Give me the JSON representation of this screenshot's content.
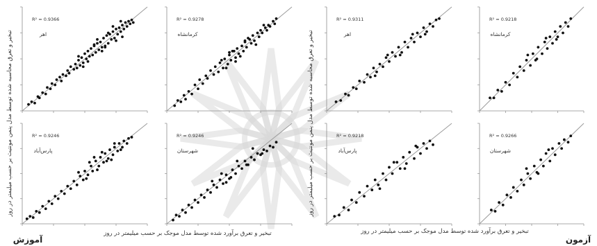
{
  "figure": {
    "watermark_color": "#d9d9d9",
    "axis_color": "#8c8c8c",
    "point_color": "#111111",
    "line_color": "#9a9a9a",
    "text_color": "#333333",
    "section_labels": {
      "left": "آموزش",
      "right": "آزمون"
    },
    "y_label": "تبخیر و تعرق محاسبه شده توسط مدل پنمن مونتیث بر حسب میلیمتر در روز",
    "x_label_left": "تبخیر و تعرق برآورد شده توسط مدل موجک بر حسب میلیمتر در روز",
    "x_label_right": "تبخیر و تعرق برآورد شده توسط مدل موجک بر حسب میلیمتر در روز"
  },
  "chart_data": [
    {
      "type": "scatter",
      "section": "آموزش",
      "station": "اهر",
      "r2": "R² = 0.9366",
      "xlim": [
        0,
        8
      ],
      "ylim": [
        0,
        8
      ],
      "line": [
        [
          0,
          0
        ],
        [
          8,
          8
        ]
      ],
      "x": [
        0.4,
        0.6,
        0.8,
        1.0,
        1.1,
        1.3,
        1.5,
        1.6,
        1.8,
        1.9,
        2.1,
        2.2,
        2.4,
        2.5,
        2.6,
        2.8,
        2.9,
        3.0,
        3.1,
        3.3,
        3.4,
        3.5,
        3.6,
        3.7,
        3.8,
        3.9,
        4.0,
        4.1,
        4.2,
        4.3,
        4.4,
        4.5,
        4.6,
        4.7,
        4.8,
        4.9,
        5.0,
        5.1,
        5.2,
        5.3,
        5.4,
        5.5,
        5.6,
        5.7,
        5.8,
        5.9,
        6.0,
        6.1,
        6.2,
        6.3,
        6.4,
        6.5,
        6.6,
        6.7,
        6.8,
        6.9,
        7.0,
        7.1,
        4.2,
        4.6,
        5.1,
        5.5,
        6.0,
        6.3,
        3.6,
        3.9,
        4.8,
        5.3,
        5.8,
        6.4
      ],
      "y": [
        0.5,
        0.7,
        0.6,
        1.1,
        1.0,
        1.4,
        1.3,
        1.8,
        1.7,
        2.1,
        2.0,
        2.4,
        2.6,
        2.3,
        2.8,
        2.7,
        3.1,
        2.9,
        3.4,
        3.2,
        3.6,
        3.3,
        3.9,
        3.5,
        4.1,
        3.7,
        4.4,
        4.0,
        4.6,
        4.2,
        4.8,
        4.3,
        5.0,
        4.5,
        5.2,
        4.7,
        5.3,
        4.9,
        5.6,
        5.0,
        5.8,
        5.2,
        5.9,
        5.5,
        6.1,
        5.6,
        6.3,
        5.9,
        6.4,
        6.1,
        6.6,
        6.3,
        6.8,
        6.5,
        6.9,
        6.7,
        7.0,
        6.8,
        3.8,
        5.1,
        4.6,
        6.0,
        5.4,
        6.9,
        4.2,
        3.4,
        5.5,
        4.9,
        6.5,
        5.7
      ]
    },
    {
      "type": "scatter",
      "section": "آموزش",
      "station": "کرمانشاه",
      "r2": "R² = 0.9278",
      "xlim": [
        0,
        8
      ],
      "ylim": [
        0,
        8
      ],
      "line": [
        [
          0,
          0
        ],
        [
          8,
          8
        ]
      ],
      "x": [
        0.5,
        0.7,
        0.9,
        1.1,
        1.2,
        1.4,
        1.6,
        1.8,
        2.0,
        2.1,
        2.3,
        2.5,
        2.6,
        2.8,
        3.0,
        3.1,
        3.3,
        3.4,
        3.6,
        3.7,
        3.9,
        4.0,
        4.1,
        4.3,
        4.4,
        4.5,
        4.6,
        4.8,
        4.9,
        5.0,
        5.1,
        5.3,
        5.4,
        5.5,
        5.6,
        5.8,
        5.9,
        6.0,
        6.1,
        6.3,
        6.4,
        6.5,
        6.6,
        6.8,
        6.9,
        7.0,
        3.5,
        3.8,
        4.2,
        4.7,
        5.2,
        5.7,
        6.2,
        4.0,
        4.4,
        5.0
      ],
      "y": [
        0.4,
        0.8,
        0.7,
        1.2,
        0.9,
        1.5,
        1.3,
        2.0,
        1.7,
        2.4,
        2.1,
        2.7,
        2.5,
        3.1,
        2.8,
        3.4,
        3.0,
        3.7,
        3.3,
        4.0,
        3.6,
        4.3,
        3.9,
        4.6,
        4.1,
        4.8,
        4.4,
        5.0,
        4.6,
        5.3,
        4.9,
        5.5,
        5.2,
        5.8,
        5.4,
        6.0,
        5.7,
        6.2,
        6.0,
        6.4,
        6.2,
        6.6,
        6.5,
        6.9,
        6.7,
        7.1,
        3.9,
        3.3,
        4.6,
        4.2,
        5.6,
        5.1,
        6.6,
        4.5,
        3.8,
        5.4
      ]
    },
    {
      "type": "scatter",
      "section": "آزمون",
      "station": "اهر",
      "r2": "R² = 0.9311",
      "xlim": [
        0,
        8
      ],
      "ylim": [
        0,
        8
      ],
      "line": [
        [
          0,
          0
        ],
        [
          8,
          8
        ]
      ],
      "x": [
        0.6,
        0.9,
        1.2,
        1.4,
        1.7,
        1.9,
        2.1,
        2.4,
        2.6,
        2.8,
        3.0,
        3.2,
        3.4,
        3.6,
        3.8,
        4.0,
        4.2,
        4.4,
        4.6,
        4.8,
        5.0,
        5.2,
        5.4,
        5.6,
        5.8,
        6.0,
        6.2,
        6.4,
        6.6,
        6.8,
        7.0,
        7.2,
        3.1,
        3.9,
        4.7,
        5.5,
        6.3
      ],
      "y": [
        0.7,
        0.8,
        1.3,
        1.2,
        1.8,
        1.7,
        2.3,
        2.2,
        2.8,
        2.6,
        3.3,
        3.0,
        3.6,
        3.4,
        4.1,
        3.8,
        4.5,
        4.2,
        4.9,
        4.5,
        5.3,
        4.9,
        5.6,
        5.3,
        6.0,
        5.7,
        6.4,
        6.1,
        6.7,
        6.5,
        7.0,
        7.1,
        2.7,
        4.3,
        4.3,
        5.9,
        5.9
      ]
    },
    {
      "type": "scatter",
      "section": "آزمون",
      "station": "کرمانشاه",
      "r2": "R² = 0.9218",
      "xlim": [
        0,
        8
      ],
      "ylim": [
        0,
        8
      ],
      "line": [
        [
          0,
          0
        ],
        [
          8,
          8
        ]
      ],
      "x": [
        0.8,
        1.1,
        1.4,
        1.7,
        2.0,
        2.3,
        2.6,
        2.9,
        3.1,
        3.4,
        3.6,
        3.9,
        4.1,
        4.3,
        4.5,
        4.8,
        5.0,
        5.2,
        5.4,
        5.6,
        5.8,
        6.0,
        6.2,
        6.4,
        6.6,
        6.8,
        7.0,
        3.7,
        4.4,
        5.1,
        5.9
      ],
      "y": [
        1.0,
        1.0,
        1.6,
        1.5,
        2.2,
        2.0,
        2.9,
        2.6,
        3.4,
        3.1,
        3.9,
        3.5,
        4.4,
        3.9,
        4.9,
        4.4,
        5.3,
        4.8,
        5.7,
        5.2,
        6.1,
        5.7,
        6.5,
        6.0,
        6.8,
        6.5,
        7.1,
        4.3,
        4.0,
        5.6,
        5.5
      ]
    },
    {
      "type": "scatter",
      "section": "آموزش",
      "station": "پارس‌آباد",
      "r2": "R² = 0.9246",
      "xlim": [
        0,
        8
      ],
      "ylim": [
        0,
        8
      ],
      "line": [
        [
          0,
          0
        ],
        [
          8,
          8
        ]
      ],
      "x": [
        0.3,
        0.5,
        0.7,
        0.9,
        1.1,
        1.3,
        1.5,
        1.7,
        1.9,
        2.1,
        2.3,
        2.5,
        2.7,
        2.9,
        3.1,
        3.3,
        3.5,
        3.7,
        3.9,
        4.0,
        4.2,
        4.4,
        4.5,
        4.7,
        4.9,
        5.0,
        5.2,
        5.3,
        5.5,
        5.6,
        5.8,
        5.9,
        6.1,
        6.2,
        6.4,
        6.5,
        6.7,
        6.8,
        7.0,
        4.3,
        4.8,
        5.1,
        5.4,
        5.9,
        6.3,
        3.6,
        4.1,
        4.6,
        5.7
      ],
      "y": [
        0.4,
        0.6,
        0.5,
        1.0,
        0.9,
        1.4,
        1.2,
        1.8,
        1.6,
        2.2,
        2.0,
        2.6,
        2.4,
        3.0,
        2.8,
        3.4,
        3.1,
        3.8,
        3.5,
        4.2,
        3.9,
        4.6,
        4.2,
        5.0,
        4.6,
        5.3,
        4.9,
        5.6,
        5.2,
        5.9,
        5.5,
        6.1,
        5.8,
        6.4,
        6.1,
        6.6,
        6.4,
        6.8,
        6.9,
        4.9,
        4.3,
        5.7,
        5.0,
        6.4,
        5.9,
        4.1,
        3.6,
        5.3,
        5.1
      ]
    },
    {
      "type": "scatter",
      "section": "آموزش",
      "station": "شهرستان",
      "r2": "R² = 0.9246",
      "xlim": [
        0,
        8
      ],
      "ylim": [
        0,
        8
      ],
      "line": [
        [
          0,
          0
        ],
        [
          8,
          8
        ]
      ],
      "x": [
        0.4,
        0.6,
        0.8,
        1.0,
        1.2,
        1.4,
        1.6,
        1.8,
        2.0,
        2.2,
        2.4,
        2.6,
        2.8,
        3.0,
        3.2,
        3.4,
        3.6,
        3.8,
        4.0,
        4.2,
        4.4,
        4.6,
        4.8,
        5.0,
        5.2,
        5.4,
        5.6,
        5.8,
        6.0,
        6.2,
        6.4,
        6.6,
        6.8,
        7.0,
        3.5,
        4.1,
        4.5,
        5.1,
        5.5,
        6.1,
        2.9,
        3.8
      ],
      "y": [
        0.3,
        0.7,
        0.6,
        1.1,
        0.9,
        1.5,
        1.3,
        1.9,
        1.7,
        2.3,
        2.1,
        2.7,
        2.5,
        3.1,
        2.9,
        3.5,
        3.2,
        3.9,
        3.6,
        4.3,
        4.0,
        4.6,
        4.4,
        5.0,
        4.7,
        5.3,
        5.1,
        5.6,
        5.5,
        5.9,
        5.8,
        6.2,
        6.1,
        6.5,
        4.0,
        3.7,
        5.0,
        4.7,
        6.0,
        5.6,
        3.4,
        3.3
      ]
    },
    {
      "type": "scatter",
      "section": "آزمون",
      "station": "پارس‌آباد",
      "r2": "R² = 0.9218",
      "xlim": [
        0,
        8
      ],
      "ylim": [
        0,
        8
      ],
      "line": [
        [
          0,
          0
        ],
        [
          8,
          8
        ]
      ],
      "x": [
        0.5,
        0.8,
        1.1,
        1.4,
        1.6,
        1.9,
        2.1,
        2.4,
        2.6,
        2.9,
        3.1,
        3.3,
        3.6,
        3.8,
        4.0,
        4.2,
        4.5,
        4.7,
        4.9,
        5.1,
        5.3,
        5.6,
        5.8,
        6.0,
        6.2,
        6.4,
        6.6,
        6.8,
        3.4,
        4.3,
        5.0,
        5.7
      ],
      "y": [
        0.6,
        0.7,
        1.3,
        1.1,
        1.9,
        1.7,
        2.5,
        2.2,
        3.0,
        2.7,
        3.5,
        3.1,
        4.0,
        3.5,
        4.5,
        4.0,
        4.9,
        4.4,
        5.3,
        4.8,
        5.7,
        5.2,
        6.1,
        5.6,
        6.4,
        6.0,
        6.6,
        6.3,
        2.8,
        4.9,
        4.4,
        6.2
      ]
    },
    {
      "type": "scatter",
      "section": "آزمون",
      "station": "شهرستان",
      "r2": "R² = 0.9266",
      "xlim": [
        0,
        8
      ],
      "ylim": [
        0,
        8
      ],
      "line": [
        [
          0,
          0
        ],
        [
          8,
          8
        ]
      ],
      "x": [
        0.9,
        1.2,
        1.5,
        1.8,
        2.1,
        2.4,
        2.6,
        2.9,
        3.2,
        3.4,
        3.7,
        3.9,
        4.2,
        4.4,
        4.7,
        4.9,
        5.1,
        5.4,
        5.6,
        5.8,
        6.1,
        6.3,
        6.5,
        6.8,
        7.0,
        3.6,
        4.5,
        5.3
      ],
      "y": [
        1.1,
        1.0,
        1.7,
        1.5,
        2.3,
        2.1,
        2.9,
        2.6,
        3.5,
        3.1,
        4.0,
        3.6,
        4.6,
        4.1,
        5.1,
        4.6,
        5.6,
        5.0,
        6.0,
        5.5,
        6.4,
        6.0,
        6.7,
        6.5,
        7.0,
        4.4,
        4.0,
        5.9
      ]
    }
  ]
}
